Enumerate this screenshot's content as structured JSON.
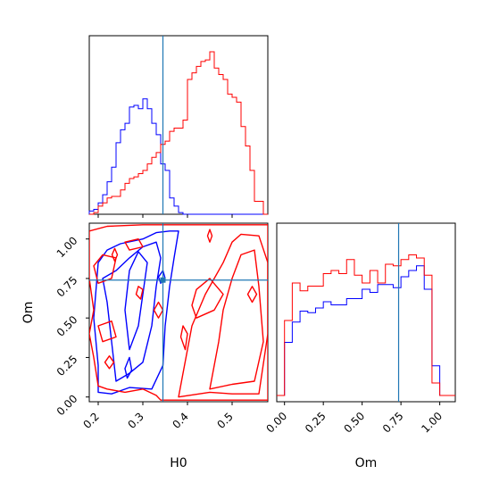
{
  "chart_data": [
    {
      "panel": "H0-marginal",
      "type": "histogram",
      "xlim": [
        0.18,
        0.58
      ],
      "bins": [
        0.18,
        0.19,
        0.2,
        0.21,
        0.22,
        0.23,
        0.24,
        0.25,
        0.26,
        0.27,
        0.28,
        0.29,
        0.3,
        0.31,
        0.32,
        0.33,
        0.34,
        0.35,
        0.36,
        0.37,
        0.38,
        0.39,
        0.4,
        0.41,
        0.42,
        0.43,
        0.44,
        0.45,
        0.46,
        0.47,
        0.48,
        0.49,
        0.5,
        0.51,
        0.52,
        0.53,
        0.54,
        0.55,
        0.56,
        0.57,
        0.58
      ],
      "series": [
        {
          "color": "#0000ff",
          "values": [
            0.02,
            0.03,
            0.07,
            0.12,
            0.2,
            0.29,
            0.44,
            0.52,
            0.56,
            0.66,
            0.67,
            0.65,
            0.71,
            0.65,
            0.56,
            0.49,
            0.31,
            0.27,
            0.1,
            0.05,
            0.01,
            0,
            0,
            0,
            0,
            0,
            0,
            0,
            0,
            0,
            0,
            0,
            0,
            0,
            0,
            0,
            0,
            0,
            0,
            0
          ]
        },
        {
          "color": "#ff0000",
          "values": [
            0,
            0.01,
            0.05,
            0.07,
            0.1,
            0.11,
            0.11,
            0.15,
            0.19,
            0.22,
            0.23,
            0.25,
            0.27,
            0.31,
            0.35,
            0.38,
            0.43,
            0.45,
            0.51,
            0.53,
            0.53,
            0.58,
            0.83,
            0.87,
            0.91,
            0.94,
            0.95,
            1.0,
            0.9,
            0.86,
            0.83,
            0.74,
            0.72,
            0.69,
            0.54,
            0.42,
            0.27,
            0.08,
            0.08,
            0
          ]
        }
      ],
      "truth": 0.345
    },
    {
      "panel": "H0-Om-joint",
      "type": "contour",
      "xlabel": "H0",
      "ylabel": "Om",
      "xlim": [
        0.18,
        0.58
      ],
      "ylim": [
        -0.03,
        1.1
      ],
      "xticks": [
        "0.2",
        "0.3",
        "0.4",
        "0.5"
      ],
      "xtick_values": [
        0.2,
        0.3,
        0.4,
        0.5
      ],
      "yticks": [
        "0.00",
        "0.25",
        "0.50",
        "0.75",
        "1.00"
      ],
      "ytick_values": [
        0,
        0.25,
        0.5,
        0.75,
        1.0
      ],
      "truth": [
        0.345,
        0.74
      ],
      "series": [
        {
          "color": "#0000ff",
          "contours": [
            [
              [
                0.2,
                0.03
              ],
              [
                0.23,
                0.02
              ],
              [
                0.27,
                0.06
              ],
              [
                0.32,
                0.05
              ],
              [
                0.345,
                0.2
              ],
              [
                0.35,
                0.45
              ],
              [
                0.36,
                0.7
              ],
              [
                0.37,
                0.88
              ],
              [
                0.38,
                1.05
              ],
              [
                0.36,
                1.05
              ],
              [
                0.33,
                1.04
              ],
              [
                0.3,
                1.0
              ],
              [
                0.25,
                0.97
              ],
              [
                0.22,
                0.93
              ],
              [
                0.2,
                0.85
              ],
              [
                0.19,
                0.5
              ],
              [
                0.2,
                0.2
              ],
              [
                0.2,
                0.03
              ]
            ],
            [
              [
                0.24,
                0.1
              ],
              [
                0.27,
                0.15
              ],
              [
                0.3,
                0.22
              ],
              [
                0.32,
                0.45
              ],
              [
                0.33,
                0.7
              ],
              [
                0.34,
                0.88
              ],
              [
                0.33,
                0.98
              ],
              [
                0.3,
                0.95
              ],
              [
                0.27,
                0.88
              ],
              [
                0.24,
                0.8
              ],
              [
                0.21,
                0.75
              ],
              [
                0.22,
                0.6
              ],
              [
                0.23,
                0.35
              ],
              [
                0.24,
                0.1
              ]
            ],
            [
              [
                0.27,
                0.3
              ],
              [
                0.29,
                0.45
              ],
              [
                0.3,
                0.65
              ],
              [
                0.31,
                0.85
              ],
              [
                0.29,
                0.92
              ],
              [
                0.27,
                0.8
              ],
              [
                0.26,
                0.55
              ],
              [
                0.27,
                0.3
              ]
            ],
            [
              [
                0.265,
                0.12
              ],
              [
                0.275,
                0.17
              ],
              [
                0.27,
                0.25
              ],
              [
                0.26,
                0.18
              ],
              [
                0.265,
                0.12
              ]
            ],
            [
              [
                0.34,
                0.72
              ],
              [
                0.35,
                0.75
              ],
              [
                0.345,
                0.8
              ],
              [
                0.335,
                0.76
              ],
              [
                0.34,
                0.72
              ]
            ]
          ]
        },
        {
          "color": "#ff0000",
          "contours": [
            [
              [
                0.34,
                -0.02
              ],
              [
                0.5,
                -0.02
              ],
              [
                0.58,
                -0.02
              ],
              [
                0.58,
                1.09
              ],
              [
                0.45,
                1.09
              ],
              [
                0.3,
                1.09
              ],
              [
                0.22,
                1.08
              ],
              [
                0.18,
                1.05
              ],
              [
                0.18,
                0.75
              ],
              [
                0.19,
                0.55
              ],
              [
                0.18,
                0.4
              ],
              [
                0.19,
                0.25
              ],
              [
                0.2,
                0.07
              ],
              [
                0.22,
                0.05
              ],
              [
                0.26,
                0.03
              ],
              [
                0.3,
                0.05
              ],
              [
                0.33,
                0.01
              ],
              [
                0.34,
                -0.02
              ]
            ],
            [
              [
                0.38,
                0.0
              ],
              [
                0.45,
                0.03
              ],
              [
                0.5,
                0.02
              ],
              [
                0.56,
                0.02
              ],
              [
                0.58,
                0.4
              ],
              [
                0.58,
                0.85
              ],
              [
                0.56,
                1.02
              ],
              [
                0.52,
                1.03
              ],
              [
                0.5,
                0.98
              ],
              [
                0.48,
                0.85
              ],
              [
                0.44,
                0.65
              ],
              [
                0.41,
                0.45
              ],
              [
                0.4,
                0.3
              ],
              [
                0.39,
                0.15
              ],
              [
                0.38,
                0.0
              ]
            ],
            [
              [
                0.45,
                0.05
              ],
              [
                0.5,
                0.08
              ],
              [
                0.55,
                0.1
              ],
              [
                0.57,
                0.35
              ],
              [
                0.56,
                0.7
              ],
              [
                0.55,
                0.93
              ],
              [
                0.52,
                0.9
              ],
              [
                0.5,
                0.75
              ],
              [
                0.48,
                0.55
              ],
              [
                0.47,
                0.35
              ],
              [
                0.45,
                0.05
              ]
            ],
            [
              [
                0.42,
                0.5
              ],
              [
                0.46,
                0.55
              ],
              [
                0.48,
                0.65
              ],
              [
                0.45,
                0.75
              ],
              [
                0.42,
                0.68
              ],
              [
                0.41,
                0.58
              ],
              [
                0.42,
                0.5
              ]
            ],
            [
              [
                0.2,
                0.72
              ],
              [
                0.23,
                0.75
              ],
              [
                0.24,
                0.88
              ],
              [
                0.21,
                0.9
              ],
              [
                0.19,
                0.83
              ],
              [
                0.2,
                0.72
              ]
            ],
            [
              [
                0.21,
                0.35
              ],
              [
                0.24,
                0.38
              ],
              [
                0.23,
                0.48
              ],
              [
                0.2,
                0.45
              ],
              [
                0.21,
                0.35
              ]
            ],
            [
              [
                0.295,
                0.62
              ],
              [
                0.3,
                0.68
              ],
              [
                0.29,
                0.7
              ],
              [
                0.285,
                0.65
              ],
              [
                0.295,
                0.62
              ]
            ],
            [
              [
                0.335,
                0.5
              ],
              [
                0.345,
                0.55
              ],
              [
                0.335,
                0.6
              ],
              [
                0.325,
                0.55
              ],
              [
                0.335,
                0.5
              ]
            ],
            [
              [
                0.395,
                0.3
              ],
              [
                0.4,
                0.4
              ],
              [
                0.39,
                0.45
              ],
              [
                0.385,
                0.38
              ],
              [
                0.395,
                0.3
              ]
            ],
            [
              [
                0.225,
                0.18
              ],
              [
                0.235,
                0.22
              ],
              [
                0.225,
                0.26
              ],
              [
                0.215,
                0.22
              ],
              [
                0.225,
                0.18
              ]
            ],
            [
              [
                0.27,
                0.93
              ],
              [
                0.3,
                0.95
              ],
              [
                0.29,
                1.0
              ],
              [
                0.26,
                0.98
              ],
              [
                0.27,
                0.93
              ]
            ],
            [
              [
                0.545,
                0.6
              ],
              [
                0.555,
                0.65
              ],
              [
                0.545,
                0.7
              ],
              [
                0.535,
                0.65
              ],
              [
                0.545,
                0.6
              ]
            ],
            [
              [
                0.237,
                0.86
              ],
              [
                0.243,
                0.9
              ],
              [
                0.237,
                0.94
              ],
              [
                0.231,
                0.9
              ],
              [
                0.237,
                0.86
              ]
            ],
            [
              [
                0.45,
                0.98
              ],
              [
                0.455,
                1.02
              ],
              [
                0.45,
                1.06
              ],
              [
                0.445,
                1.02
              ],
              [
                0.45,
                0.98
              ]
            ]
          ]
        }
      ]
    },
    {
      "panel": "Om-marginal",
      "type": "histogram",
      "xlabel": "Om",
      "xlim": [
        -0.05,
        1.1
      ],
      "xticks": [
        "0.00",
        "0.25",
        "0.50",
        "0.75",
        "1.00"
      ],
      "xtick_values": [
        0,
        0.25,
        0.5,
        0.75,
        1.0
      ],
      "bins": [
        0.0,
        0.05,
        0.1,
        0.15,
        0.2,
        0.25,
        0.3,
        0.35,
        0.4,
        0.45,
        0.5,
        0.55,
        0.6,
        0.65,
        0.7,
        0.75,
        0.8,
        0.85,
        0.9,
        0.95,
        1.0
      ],
      "series": [
        {
          "color": "#0000ff",
          "values": [
            0.34,
            0.47,
            0.54,
            0.53,
            0.56,
            0.6,
            0.58,
            0.58,
            0.62,
            0.62,
            0.68,
            0.66,
            0.71,
            0.71,
            0.69,
            0.76,
            0.8,
            0.83,
            0.68,
            0.19
          ]
        },
        {
          "color": "#ff0000",
          "values": [
            0.48,
            0.72,
            0.67,
            0.7,
            0.7,
            0.78,
            0.8,
            0.78,
            0.87,
            0.77,
            0.72,
            0.8,
            0.72,
            0.84,
            0.83,
            0.87,
            0.9,
            0.88,
            0.77,
            0.08
          ]
        }
      ],
      "truth": 0.735
    }
  ]
}
